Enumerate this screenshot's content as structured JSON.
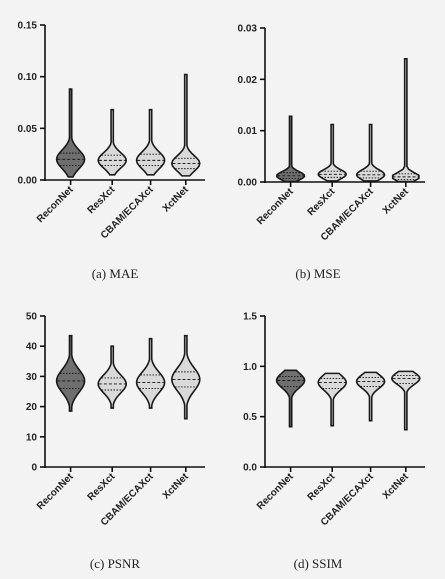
{
  "figure": {
    "captions": [
      "(a) MAE",
      "(b) MSE",
      "(c) PSNR",
      "(d) SSIM"
    ]
  },
  "chart_data": [
    {
      "type": "violin",
      "caption": "(a) MAE",
      "categories": [
        "ReconNet",
        "ResXct",
        "CBAM/ECAXct",
        "XctNet"
      ],
      "ylim": [
        0,
        0.15
      ],
      "yticks": [
        "0.00",
        "0.05",
        "0.10",
        "0.15"
      ],
      "tick_values": [
        0,
        0.05,
        0.1,
        0.15
      ],
      "series": [
        {
          "median": 0.02,
          "q1": 0.014,
          "q3": 0.026,
          "min": 0.003,
          "max": 0.088
        },
        {
          "median": 0.019,
          "q1": 0.014,
          "q3": 0.024,
          "min": 0.005,
          "max": 0.068
        },
        {
          "median": 0.019,
          "q1": 0.014,
          "q3": 0.025,
          "min": 0.005,
          "max": 0.068
        },
        {
          "median": 0.016,
          "q1": 0.011,
          "q3": 0.021,
          "min": 0.004,
          "max": 0.102
        }
      ]
    },
    {
      "type": "violin",
      "caption": "(b) MSE",
      "categories": [
        "ReconNet",
        "ResXct",
        "CBAM/ECAXct",
        "XctNet"
      ],
      "ylim": [
        0,
        0.03
      ],
      "yticks": [
        "0.00",
        "0.01",
        "0.02",
        "0.03"
      ],
      "tick_values": [
        0,
        0.01,
        0.02,
        0.03
      ],
      "series": [
        {
          "median": 0.0012,
          "q1": 0.0007,
          "q3": 0.0018,
          "min": 0.0001,
          "max": 0.0128
        },
        {
          "median": 0.0015,
          "q1": 0.0009,
          "q3": 0.0021,
          "min": 0.0002,
          "max": 0.0112
        },
        {
          "median": 0.0014,
          "q1": 0.0008,
          "q3": 0.0021,
          "min": 0.0002,
          "max": 0.0112
        },
        {
          "median": 0.001,
          "q1": 0.0005,
          "q3": 0.0016,
          "min": 0.0001,
          "max": 0.024
        }
      ]
    },
    {
      "type": "violin",
      "caption": "(c) PSNR",
      "categories": [
        "ReconNet",
        "ResXct",
        "CBAM/ECAXct",
        "XctNet"
      ],
      "ylim": [
        0,
        50
      ],
      "yticks": [
        "0",
        "10",
        "20",
        "30",
        "40",
        "50"
      ],
      "tick_values": [
        0,
        10,
        20,
        30,
        40,
        50
      ],
      "series": [
        {
          "median": 28.5,
          "q1": 26.0,
          "q3": 31.0,
          "min": 18.5,
          "max": 43.5
        },
        {
          "median": 27.5,
          "q1": 25.5,
          "q3": 29.5,
          "min": 19.5,
          "max": 40.0
        },
        {
          "median": 28.0,
          "q1": 26.0,
          "q3": 30.5,
          "min": 19.5,
          "max": 42.5
        },
        {
          "median": 29.0,
          "q1": 26.5,
          "q3": 31.5,
          "min": 16.0,
          "max": 43.5
        }
      ]
    },
    {
      "type": "violin",
      "caption": "(d) SSIM",
      "categories": [
        "ReconNet",
        "ResXct",
        "CBAM/ECAXct",
        "XctNet"
      ],
      "ylim": [
        0,
        1.5
      ],
      "yticks": [
        "0.0",
        "0.5",
        "1.0",
        "1.5"
      ],
      "tick_values": [
        0,
        0.5,
        1.0,
        1.5
      ],
      "series": [
        {
          "median": 0.86,
          "q1": 0.8,
          "q3": 0.9,
          "min": 0.4,
          "max": 0.96
        },
        {
          "median": 0.84,
          "q1": 0.78,
          "q3": 0.88,
          "min": 0.41,
          "max": 0.93
        },
        {
          "median": 0.85,
          "q1": 0.8,
          "q3": 0.89,
          "min": 0.46,
          "max": 0.94
        },
        {
          "median": 0.88,
          "q1": 0.83,
          "q3": 0.91,
          "min": 0.37,
          "max": 0.95
        }
      ]
    }
  ],
  "colors": {
    "reconnet_fill": "#6f6f6f",
    "other_fill": "#d9d9d9",
    "outline": "#1a1a1a",
    "background": "#f3f3f3"
  }
}
